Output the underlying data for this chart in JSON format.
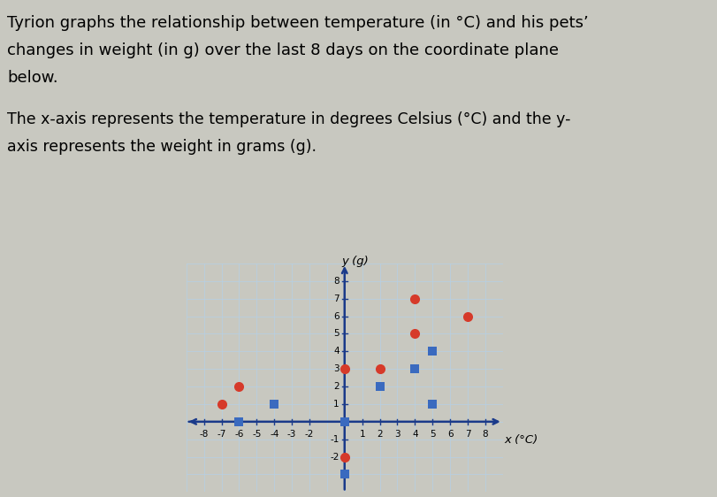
{
  "red_circles": [
    [
      -7,
      1
    ],
    [
      -6,
      2
    ],
    [
      0,
      3
    ],
    [
      2,
      3
    ],
    [
      4,
      7
    ],
    [
      4,
      5
    ],
    [
      7,
      6
    ],
    [
      0,
      -2
    ]
  ],
  "blue_squares": [
    [
      -6,
      0
    ],
    [
      -4,
      1
    ],
    [
      0,
      0
    ],
    [
      2,
      2
    ],
    [
      4,
      3
    ],
    [
      5,
      1
    ],
    [
      5,
      4
    ],
    [
      0,
      -3
    ]
  ],
  "red_color": "#d63a2a",
  "blue_color": "#3a6abf",
  "xlabel": "x (°C)",
  "ylabel": "y (g)",
  "xlim": [
    -9,
    9
  ],
  "ylim": [
    -4,
    9
  ],
  "xtick_vals": [
    -8,
    -7,
    -6,
    -5,
    -4,
    -3,
    -2,
    1,
    2,
    3,
    4,
    5,
    6,
    7,
    8
  ],
  "ytick_vals": [
    -2,
    -1,
    1,
    2,
    3,
    4,
    5,
    6,
    7,
    8
  ],
  "grid_color": "#b8cfe0",
  "plot_bg": "#dce8f0",
  "page_bg": "#c8c8c0",
  "title_line1": "Tyrion graphs the relationship between temperature (in °C) and his pets’",
  "title_line2": "changes in weight (in g) over the last 8 days on the coordinate plane",
  "title_line3": "below.",
  "subtitle_line1": "The x-axis represents the temperature in degrees Celsius (°C) and the y-",
  "subtitle_line2": "axis represents the weight in grams (g).",
  "marker_size": 8,
  "axis_color": "#1a3a8a"
}
